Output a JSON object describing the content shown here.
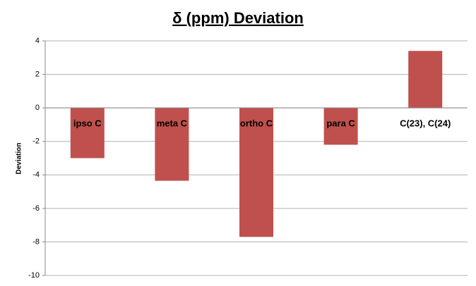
{
  "chart_data": {
    "type": "bar",
    "title": "δ (ppm) Deviation",
    "y_label": "Deviation",
    "categories": [
      "ipso C",
      "meta C",
      "ortho C",
      "para C",
      "C(23), C(24)"
    ],
    "values": [
      -3.0,
      -4.35,
      -7.7,
      -2.2,
      3.4
    ],
    "color": "#c0504d",
    "ylim": [
      -10,
      4
    ],
    "yticks": [
      -10,
      -8,
      -6,
      -4,
      -2,
      0,
      2,
      4
    ],
    "grid": true
  }
}
